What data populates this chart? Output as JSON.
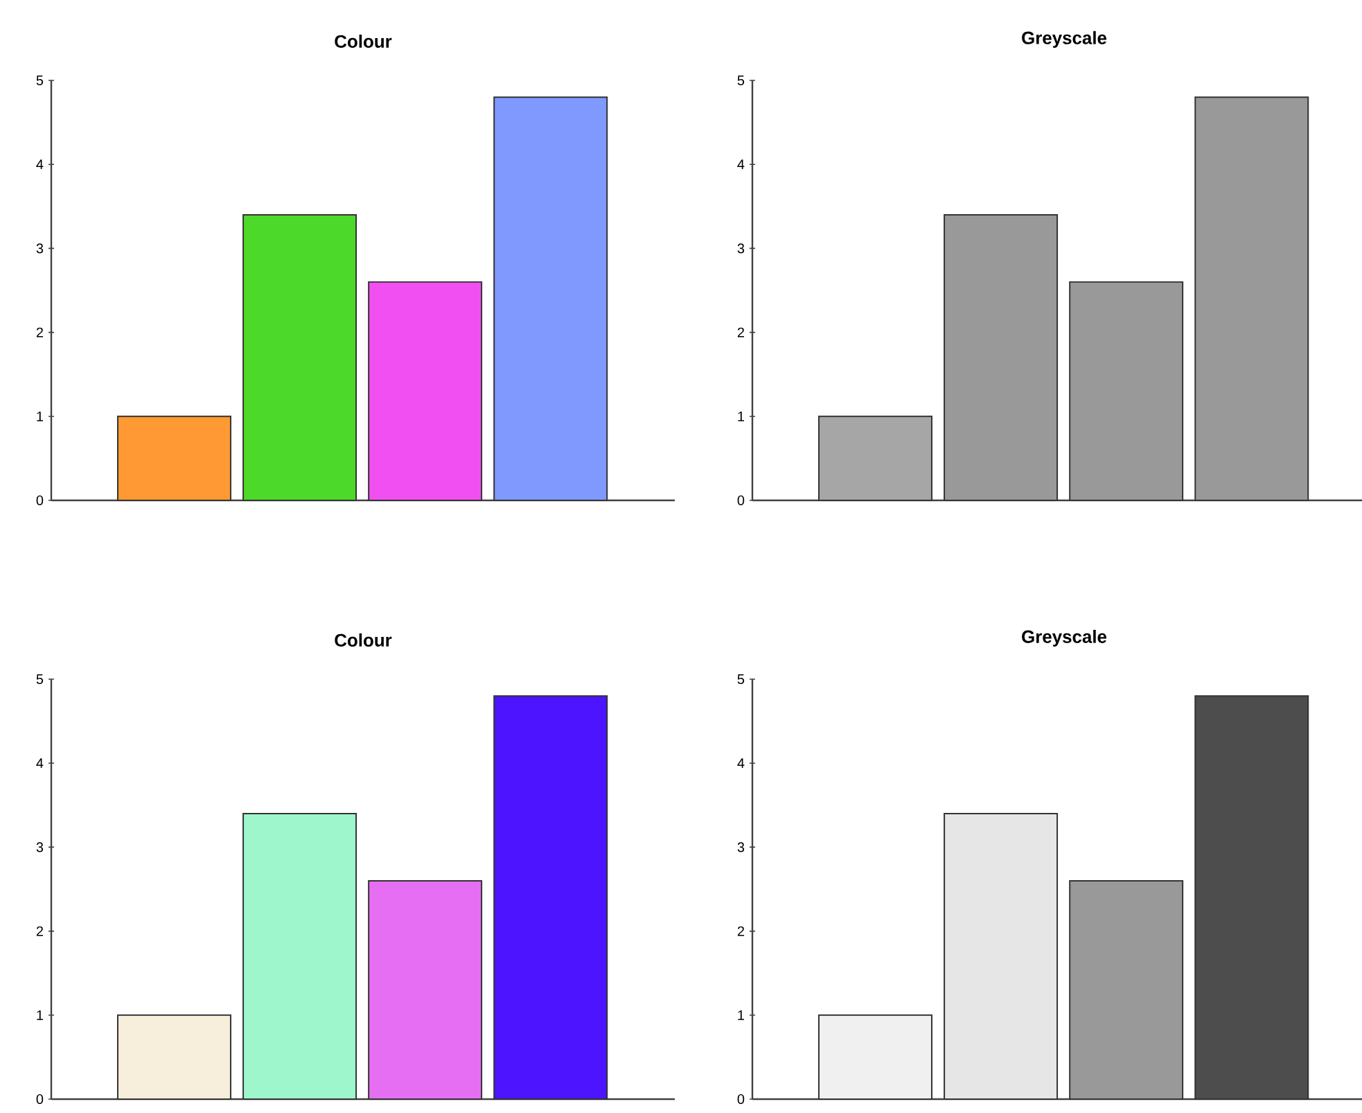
{
  "chart_data": [
    {
      "type": "bar",
      "title": "Colour",
      "categories": [
        null,
        null,
        null,
        null
      ],
      "values": [
        1,
        3.4,
        2.6,
        4.8
      ],
      "colors": [
        "#ff9933",
        "#4dd92a",
        "#f24ff2",
        "#7f99ff"
      ],
      "ylim": [
        0,
        5
      ],
      "yticks": [
        0,
        1,
        2,
        3,
        4,
        5
      ]
    },
    {
      "type": "bar",
      "title": "Greyscale",
      "categories": [
        null,
        null,
        null,
        null
      ],
      "values": [
        1,
        3.4,
        2.6,
        4.8
      ],
      "colors": [
        "#a6a6a6",
        "#999999",
        "#999999",
        "#999999"
      ],
      "ylim": [
        0,
        5
      ],
      "yticks": [
        0,
        1,
        2,
        3,
        4,
        5
      ]
    },
    {
      "type": "bar",
      "title": "Colour",
      "categories": [
        null,
        null,
        null,
        null
      ],
      "values": [
        1,
        3.4,
        2.6,
        4.8
      ],
      "colors": [
        "#f7eedb",
        "#9ef7cc",
        "#e66ef2",
        "#4d14ff"
      ],
      "ylim": [
        0,
        5
      ],
      "yticks": [
        0,
        1,
        2,
        3,
        4,
        5
      ]
    },
    {
      "type": "bar",
      "title": "Greyscale",
      "categories": [
        null,
        null,
        null,
        null
      ],
      "values": [
        1,
        3.4,
        2.6,
        4.8
      ],
      "colors": [
        "#f0f0f0",
        "#e6e6e6",
        "#999999",
        "#4d4d4d"
      ],
      "ylim": [
        0,
        5
      ],
      "yticks": [
        0,
        1,
        2,
        3,
        4,
        5
      ]
    }
  ]
}
